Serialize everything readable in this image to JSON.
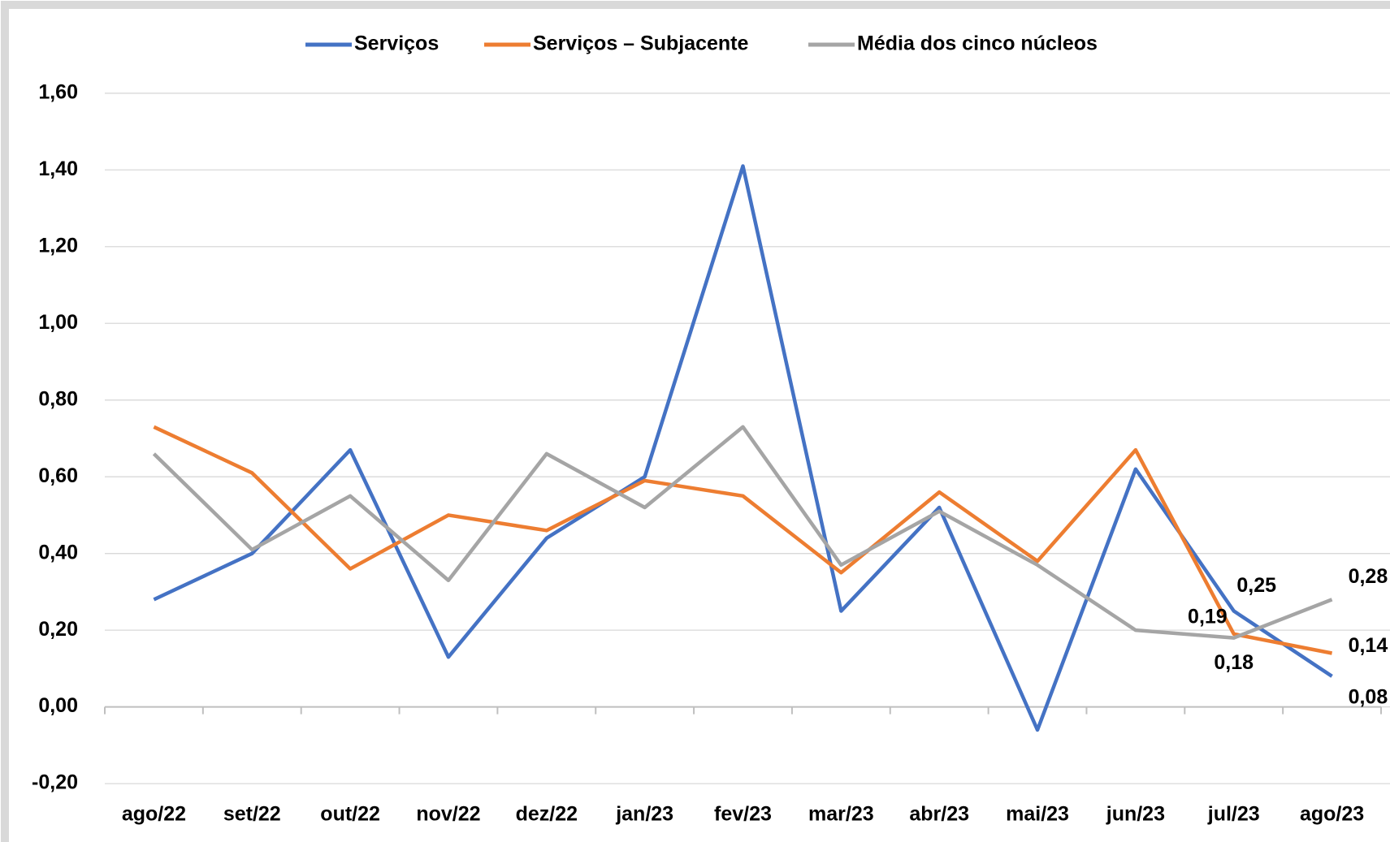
{
  "chart_data": {
    "type": "line",
    "categories": [
      "ago/22",
      "set/22",
      "out/22",
      "nov/22",
      "dez/22",
      "jan/23",
      "fev/23",
      "mar/23",
      "abr/23",
      "mai/23",
      "jun/23",
      "jul/23",
      "ago/23"
    ],
    "series": [
      {
        "name": "Serviços",
        "color": "#4472c4",
        "values": [
          0.28,
          0.4,
          0.67,
          0.13,
          0.44,
          0.6,
          1.41,
          0.25,
          0.52,
          -0.06,
          0.62,
          0.25,
          0.08
        ],
        "value_labels": [
          null,
          null,
          null,
          null,
          null,
          null,
          null,
          null,
          null,
          null,
          null,
          "0,25",
          "0,08"
        ]
      },
      {
        "name": "Serviços – Subjacente",
        "color": "#ed7d31",
        "values": [
          0.73,
          0.61,
          0.36,
          0.5,
          0.46,
          0.59,
          0.55,
          0.35,
          0.56,
          0.38,
          0.67,
          0.19,
          0.14
        ],
        "value_labels": [
          null,
          null,
          null,
          null,
          null,
          null,
          null,
          null,
          null,
          null,
          null,
          "0,19",
          "0,14"
        ]
      },
      {
        "name": "Média dos cinco núcleos",
        "color": "#a5a5a5",
        "values": [
          0.66,
          0.41,
          0.55,
          0.33,
          0.66,
          0.52,
          0.73,
          0.37,
          0.51,
          0.37,
          0.2,
          0.18,
          0.28
        ],
        "value_labels": [
          null,
          null,
          null,
          null,
          null,
          null,
          null,
          null,
          null,
          null,
          null,
          "0,18",
          "0,28"
        ]
      }
    ],
    "ylim": [
      -0.2,
      1.6
    ],
    "yticks": [
      {
        "value": -0.2,
        "label": "-0,20"
      },
      {
        "value": 0,
        "label": "0,00"
      },
      {
        "value": 0.2,
        "label": "0,20"
      },
      {
        "value": 0.4,
        "label": "0,40"
      },
      {
        "value": 0.6,
        "label": "0,60"
      },
      {
        "value": 0.8,
        "label": "0,80"
      },
      {
        "value": 1.0,
        "label": "1,00"
      },
      {
        "value": 1.2,
        "label": "1,20"
      },
      {
        "value": 1.4,
        "label": "1,40"
      },
      {
        "value": 1.6,
        "label": "1,60"
      }
    ],
    "grid": true,
    "legend": "top"
  }
}
